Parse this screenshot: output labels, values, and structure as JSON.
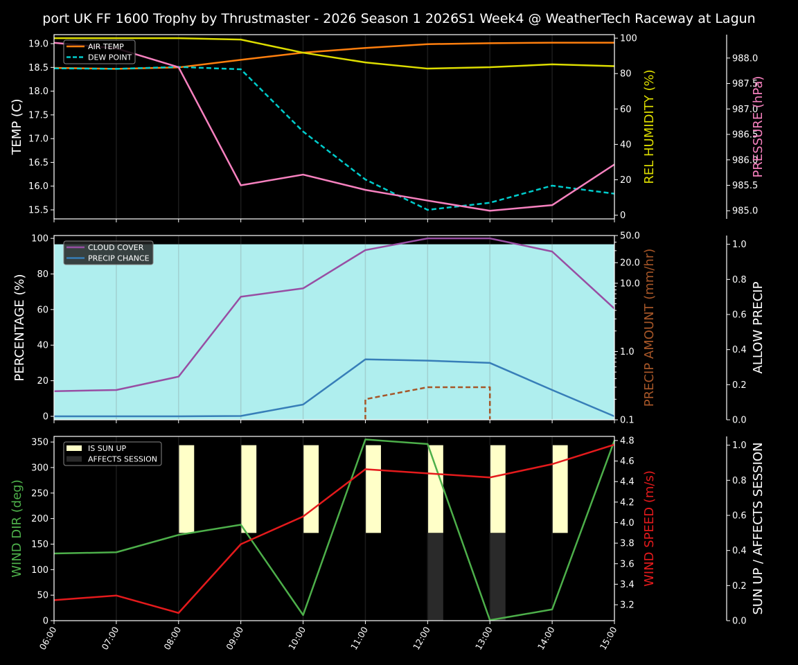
{
  "title": "port UK FF 1600 Trophy by Thrustmaster - 2026 Season 1 2026S1 Week4 @ WeatherTech Raceway at Lagun",
  "colors": {
    "air_temp": "#ff7f0e",
    "dew_point": "#00cccc",
    "humidity": "#dddd00",
    "pressure": "#f781bf",
    "cloud_cover": "#984ea3",
    "precip_chance": "#377eb8",
    "precip_amount": "#a65628",
    "allow_precip": "#afeeee",
    "wind_dir": "#4daf4a",
    "wind_speed": "#e41a1c",
    "sun_up": "#ffffc8",
    "affects_session": "#2a2a2a"
  },
  "chart_data": [
    {
      "type": "line",
      "x": [
        "06:00",
        "07:00",
        "08:00",
        "09:00",
        "10:00",
        "11:00",
        "12:00",
        "13:00",
        "14:00",
        "15:00"
      ],
      "ylabel": "TEMP (C)",
      "ylabel_right": "REL HUMIDITY (%)",
      "ylabel_right2": "PRESSURE (hPa)",
      "ylim": [
        15.31,
        19.19
      ],
      "ylim_right": [
        -2.1,
        102
      ],
      "ylim_right2": [
        984.84,
        988.46
      ],
      "yticks": [
        "15.5",
        "16.0",
        "16.5",
        "17.0",
        "17.5",
        "18.0",
        "18.5",
        "19.0"
      ],
      "yticks_right": [
        "0",
        "20",
        "40",
        "60",
        "80",
        "100"
      ],
      "yticks_right2": [
        "985.0",
        "985.5",
        "986.0",
        "986.5",
        "987.0",
        "987.5",
        "988.0"
      ],
      "grid": "x",
      "legend": "top-left",
      "series": [
        {
          "name": "AIR TEMP",
          "axis": "left",
          "style": "solid",
          "values": [
            18.49,
            18.47,
            18.5,
            18.66,
            18.81,
            18.91,
            18.99,
            19.01,
            19.02,
            19.02
          ]
        },
        {
          "name": "DEW POINT",
          "axis": "left",
          "style": "dashed",
          "values": [
            18.48,
            18.47,
            18.51,
            18.46,
            17.15,
            16.14,
            15.5,
            15.65,
            16.01,
            15.84
          ]
        },
        {
          "axis": "right",
          "style": "solid",
          "key": "humidity",
          "values": [
            100,
            100,
            100,
            99.2,
            91.8,
            86.3,
            82.8,
            83.6,
            85.2,
            84.2
          ]
        },
        {
          "axis": "right2",
          "style": "solid",
          "key": "pressure",
          "values": [
            988.3,
            988.19,
            987.82,
            985.5,
            985.71,
            985.41,
            985.2,
            985.0,
            985.11,
            985.91
          ]
        }
      ]
    },
    {
      "type": "line",
      "x": [
        "06:00",
        "07:00",
        "08:00",
        "09:00",
        "10:00",
        "11:00",
        "12:00",
        "13:00",
        "14:00",
        "15:00"
      ],
      "ylabel": "PERCENTAGE (%)",
      "ylabel_right": "PRECIP AMOUNT (mm/hr)",
      "ylabel_right2": "ALLOW PRECIP",
      "ylim": [
        -1.95,
        101.6
      ],
      "ylim_right": [
        0.1,
        50
      ],
      "yscale_right": "log",
      "ylim_right2": [
        0,
        1.05
      ],
      "yticks": [
        "0",
        "20",
        "40",
        "60",
        "80",
        "100"
      ],
      "yticks_right": [
        "0.1",
        "1.0",
        "10.0",
        "20.0",
        "50.0"
      ],
      "yticks_right2": [
        "0.0",
        "0.2",
        "0.4",
        "0.6",
        "0.8",
        "1.0"
      ],
      "grid": "x",
      "legend": "top-left",
      "series": [
        {
          "name": "CLOUD COVER",
          "axis": "left",
          "style": "solid",
          "values": [
            14.1,
            14.8,
            22.3,
            67.2,
            71.9,
            93.4,
            100,
            100,
            92.6,
            60.5
          ]
        },
        {
          "name": "PRECIP CHANCE",
          "axis": "left",
          "style": "solid",
          "values": [
            0,
            0,
            0,
            0.2,
            6.6,
            32.0,
            31.3,
            30.0,
            14.8,
            0
          ]
        },
        {
          "axis": "right",
          "style": "dashed",
          "key": "precip_amount",
          "values": [
            0,
            0,
            0,
            0,
            0,
            0.2,
            0.3,
            0.3,
            0,
            0
          ]
        },
        {
          "axis": "right2",
          "style": "fill",
          "key": "allow_precip",
          "values": [
            1,
            1,
            1,
            1,
            1,
            1,
            1,
            1,
            1,
            1
          ]
        }
      ]
    },
    {
      "type": "line",
      "x": [
        "06:00",
        "07:00",
        "08:00",
        "09:00",
        "10:00",
        "11:00",
        "12:00",
        "13:00",
        "14:00",
        "15:00"
      ],
      "ylabel": "WIND DIR (deg)",
      "ylabel_right": "WIND SPEED (m/s)",
      "ylabel_right2": "SUN UP / AFFECTS SESSION",
      "ylim": [
        0,
        361
      ],
      "ylim_right": [
        3.045,
        4.84
      ],
      "ylim_right2": [
        0,
        1.05
      ],
      "yticks": [
        "0",
        "50",
        "100",
        "150",
        "200",
        "250",
        "300",
        "350"
      ],
      "yticks_right": [
        "3.2",
        "3.4",
        "3.6",
        "3.8",
        "4.0",
        "4.2",
        "4.4",
        "4.6",
        "4.8"
      ],
      "yticks_right2": [
        "0.0",
        "0.2",
        "0.4",
        "0.6",
        "0.8",
        "1.0"
      ],
      "grid": "x",
      "legend": "top-left",
      "series": [
        {
          "axis": "left",
          "style": "solid",
          "key": "wind_dir",
          "values": [
            131.6,
            134,
            168,
            188,
            11,
            355,
            346,
            1,
            22,
            353
          ]
        },
        {
          "axis": "right",
          "style": "solid",
          "key": "wind_speed",
          "values": [
            3.245,
            3.29,
            3.12,
            3.79,
            4.06,
            4.52,
            4.48,
            4.44,
            4.57,
            4.76
          ]
        },
        {
          "name": "IS SUN UP",
          "axis": "right2",
          "style": "bar",
          "values": [
            0,
            0,
            1,
            1,
            1,
            1,
            1,
            1,
            1,
            0
          ]
        },
        {
          "name": "AFFECTS SESSION",
          "axis": "right2",
          "style": "bar",
          "values": [
            0,
            0,
            0,
            0,
            0,
            0,
            1,
            1,
            0,
            0
          ]
        }
      ]
    }
  ]
}
